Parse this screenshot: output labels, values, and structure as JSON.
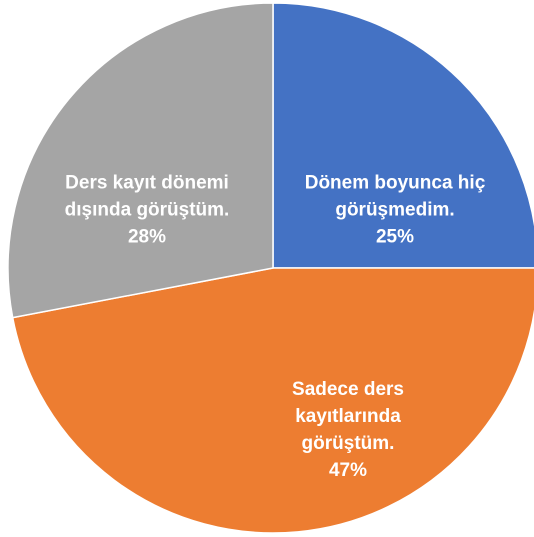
{
  "chart_data": {
    "type": "pie",
    "categories": [
      "Dönem boyunca hiç görüşmedim.",
      "Sadece ders kayıtlarında görüştüm.",
      "Ders kayıt dönemi dışında görüştüm."
    ],
    "values": [
      25,
      47,
      28
    ],
    "value_labels": [
      "25%",
      "47%",
      "28%"
    ],
    "colors": [
      "#4472c4",
      "#ed7d31",
      "#a5a5a5"
    ]
  }
}
